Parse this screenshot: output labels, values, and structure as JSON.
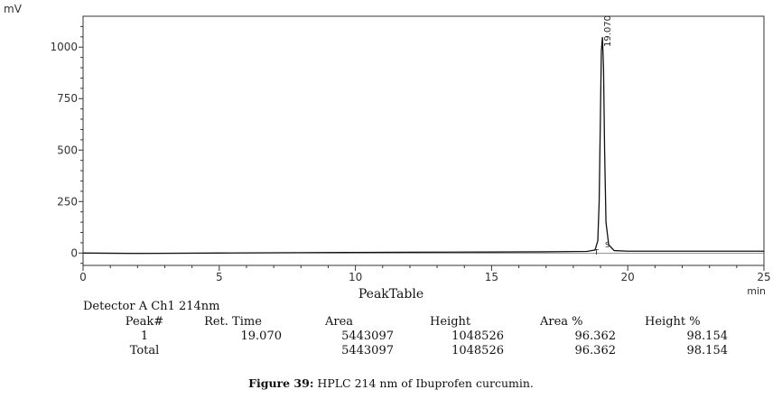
{
  "chart_data": {
    "type": "line",
    "y_unit": "mV",
    "x_unit": "min",
    "xlim": [
      0,
      25
    ],
    "ylim": [
      -60,
      1150
    ],
    "x_ticks": [
      0,
      5,
      10,
      15,
      20,
      25
    ],
    "y_ticks": [
      0,
      250,
      500,
      750,
      1000
    ],
    "grid": false,
    "series": [
      {
        "x": [
          0,
          2,
          5,
          8,
          10,
          12,
          15,
          17,
          18.5,
          18.8,
          18.9,
          18.95,
          19.0,
          19.03,
          19.07,
          19.11,
          19.15,
          19.2,
          19.3,
          19.5,
          20,
          22,
          25
        ],
        "y": [
          0,
          -2,
          0,
          2,
          3,
          4,
          5,
          6,
          8,
          15,
          60,
          250,
          700,
          980,
          1048.526,
          900,
          500,
          150,
          40,
          12,
          9,
          9,
          9
        ]
      }
    ],
    "annotations": [
      {
        "x": 19.07,
        "label": "19.070"
      }
    ],
    "markers": {
      "peak_start": "T",
      "peak_end": "S"
    }
  },
  "peak_table": {
    "title": "PeakTable",
    "detector": "Detector A Ch1 214nm",
    "headers": {
      "peak": "Peak#",
      "ret_time": "Ret. Time",
      "area": "Area",
      "height": "Height",
      "area_pct": "Area %",
      "height_pct": "Height %"
    },
    "row": {
      "peak": "1",
      "ret_time": "19.070",
      "area": "5443097",
      "height": "1048526",
      "area_pct": "96.362",
      "height_pct": "98.154"
    },
    "total": {
      "label": "Total",
      "area": "5443097",
      "height": "1048526",
      "area_pct": "96.362",
      "height_pct": "98.154"
    }
  },
  "caption": {
    "label": "Figure 39:",
    "text": " HPLC 214 nm of Ibuprofen curcumin."
  }
}
